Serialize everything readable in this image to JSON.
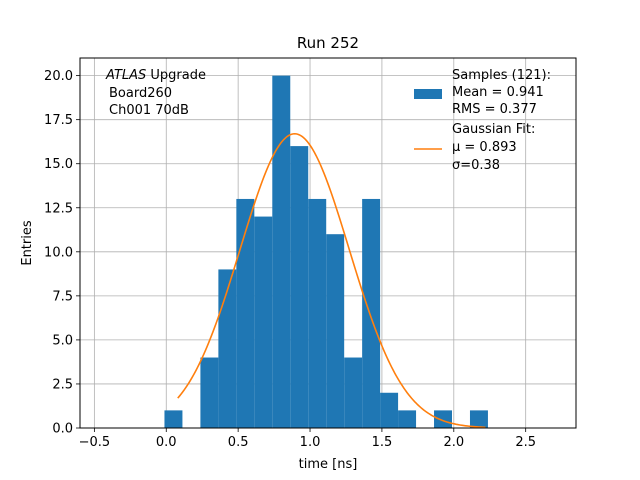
{
  "chart_data": {
    "type": "bar",
    "title": "Run 252",
    "xlabel": "time [ns]",
    "ylabel": "Entries",
    "xlim": [
      -0.6,
      2.85
    ],
    "ylim": [
      0,
      21.0
    ],
    "grid": true,
    "x_ticks": [
      -0.5,
      0.0,
      0.5,
      1.0,
      1.5,
      2.0,
      2.5
    ],
    "x_tick_labels": [
      "−0.5",
      "0.0",
      "0.5",
      "1.0",
      "1.5",
      "2.0",
      "2.5"
    ],
    "y_ticks": [
      0,
      2.5,
      5,
      7.5,
      10,
      12.5,
      15,
      17.5,
      20
    ],
    "y_tick_labels": [
      "0.0",
      "2.5",
      "5.0",
      "7.5",
      "10.0",
      "12.5",
      "15.0",
      "17.5",
      "20.0"
    ],
    "histogram": {
      "bin_width": 0.125,
      "bin_left_edges": [
        -0.0125,
        0.1125,
        0.2375,
        0.3625,
        0.4875,
        0.6125,
        0.7375,
        0.8625,
        0.9875,
        1.1125,
        1.2375,
        1.3625,
        1.4875,
        1.6125,
        1.7375,
        1.8625,
        1.9875,
        2.1125,
        2.2375
      ],
      "counts": [
        1,
        0,
        4,
        9,
        13,
        12,
        20,
        16,
        13,
        11,
        4,
        13,
        2,
        1,
        0,
        1,
        0,
        1,
        0
      ],
      "color": "#1f77b4"
    },
    "fit": {
      "type": "gaussian",
      "mu": 0.893,
      "sigma": 0.38,
      "amplitude": 16.7,
      "x_range": [
        0.08,
        2.22
      ],
      "color": "#ff7f0e"
    },
    "legend": {
      "placement": "top-right",
      "entries": [
        {
          "label_lines": [
            "Samples (121):",
            " Mean = 0.941",
            " RMS = 0.377"
          ],
          "marker": "patch",
          "color": "#1f77b4"
        },
        {
          "label_lines": [
            "Gaussian Fit:",
            " μ = 0.893",
            " σ=0.38"
          ],
          "marker": "line",
          "color": "#ff7f0e"
        }
      ]
    },
    "annotation": {
      "placement": "top-left",
      "line1_italic": "ATLAS",
      "line1_rest": " Upgrade",
      "line2": "Board260",
      "line3": "Ch001 70dB"
    }
  }
}
